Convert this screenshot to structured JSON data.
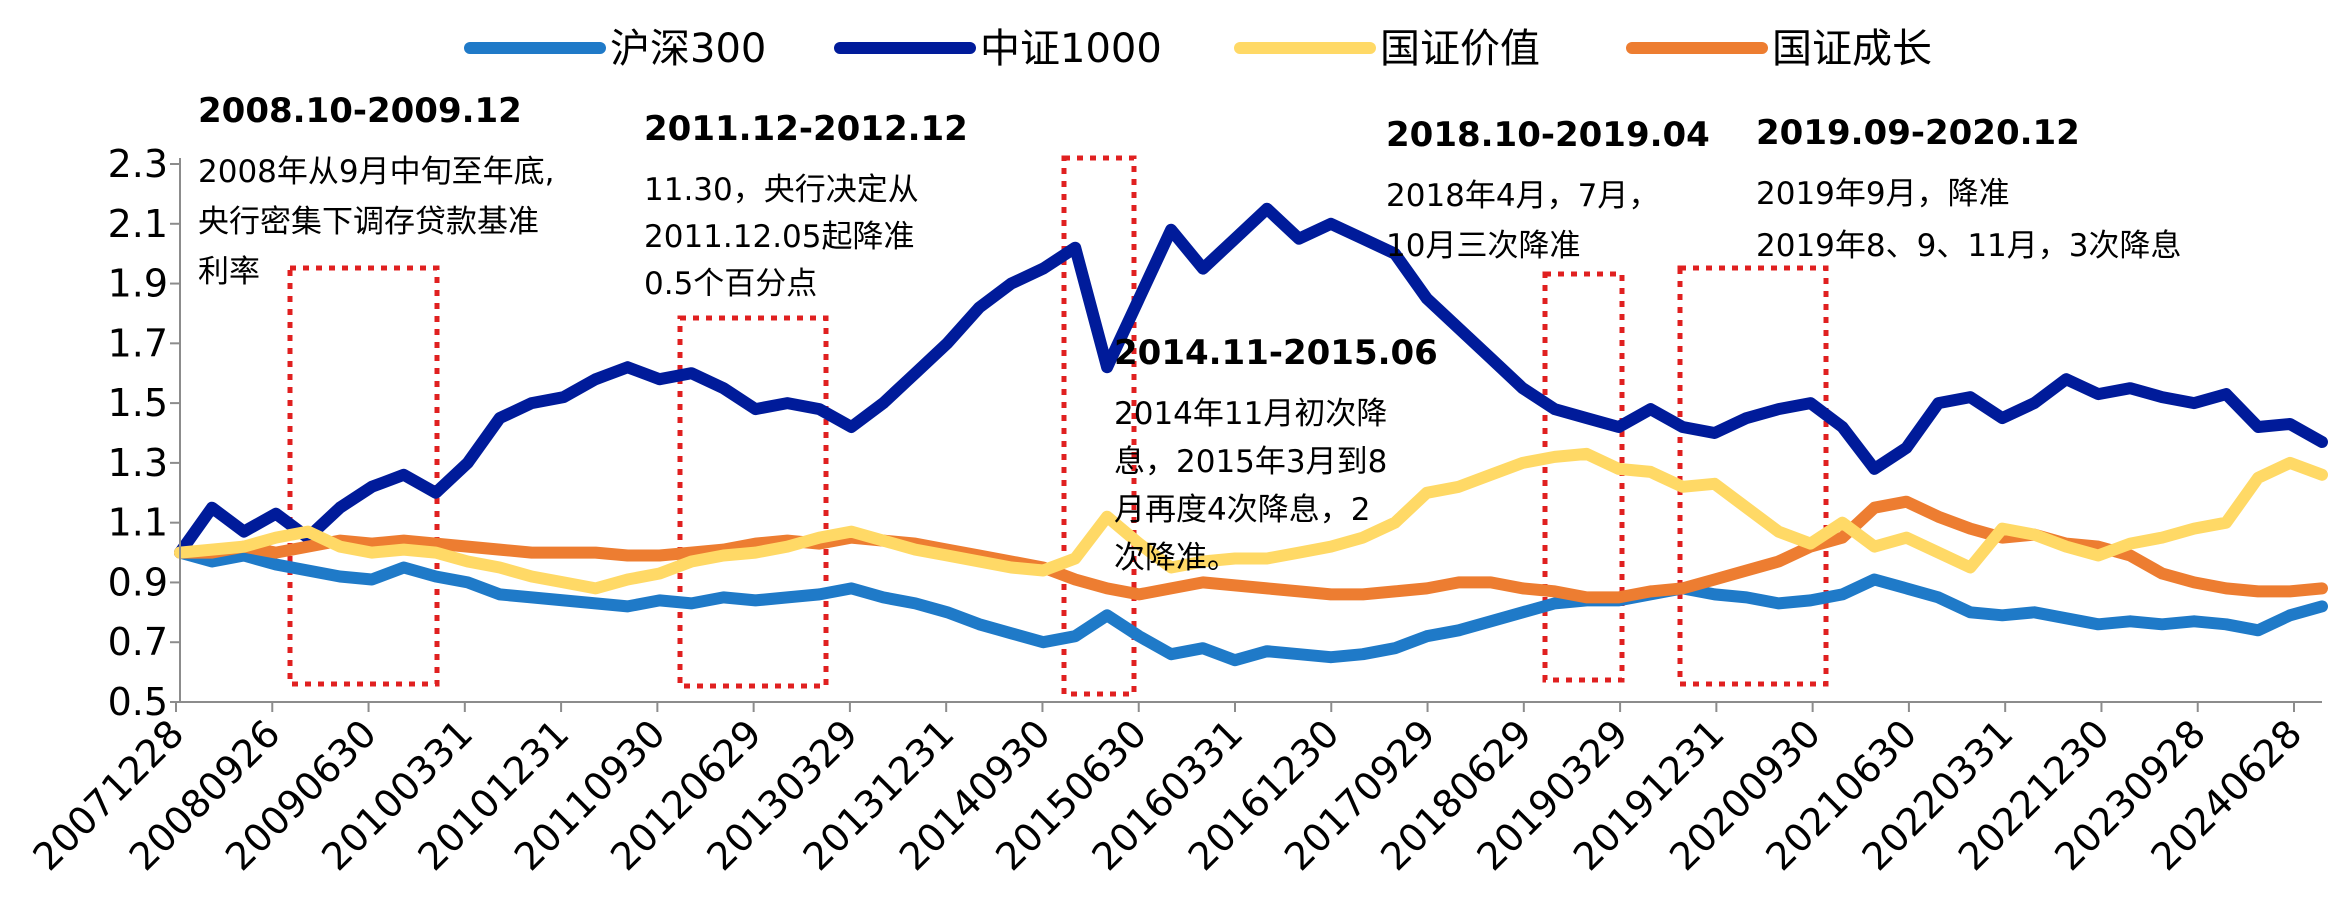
{
  "chart_data": {
    "type": "line",
    "title": "",
    "xlabel": "",
    "ylabel": "",
    "ylim": [
      0.5,
      2.3
    ],
    "yticks": [
      "0.5",
      "0.7",
      "0.9",
      "1.1",
      "1.3",
      "1.5",
      "1.7",
      "1.9",
      "2.1",
      "2.3"
    ],
    "xticks": [
      "20071228",
      "20080926",
      "20090630",
      "20100331",
      "20101231",
      "20110930",
      "20120629",
      "20130329",
      "20131231",
      "20140930",
      "20150630",
      "20160331",
      "20161230",
      "20170929",
      "20180629",
      "20190329",
      "20191231",
      "20200930",
      "20210630",
      "20220331",
      "20221230",
      "20230928",
      "20240628"
    ],
    "grid": false,
    "legend_position": "top",
    "x": [
      "2007-12",
      "2008-03",
      "2008-06",
      "2008-09",
      "2008-12",
      "2009-03",
      "2009-06",
      "2009-09",
      "2009-12",
      "2010-03",
      "2010-06",
      "2010-09",
      "2010-12",
      "2011-03",
      "2011-06",
      "2011-09",
      "2011-12",
      "2012-03",
      "2012-06",
      "2012-09",
      "2012-12",
      "2013-03",
      "2013-06",
      "2013-09",
      "2013-12",
      "2014-03",
      "2014-06",
      "2014-09",
      "2014-12",
      "2015-03",
      "2015-06",
      "2015-09",
      "2015-12",
      "2016-03",
      "2016-06",
      "2016-09",
      "2016-12",
      "2017-03",
      "2017-06",
      "2017-09",
      "2017-12",
      "2018-03",
      "2018-06",
      "2018-09",
      "2018-12",
      "2019-03",
      "2019-06",
      "2019-09",
      "2019-12",
      "2020-03",
      "2020-06",
      "2020-09",
      "2020-12",
      "2021-03",
      "2021-06",
      "2021-09",
      "2021-12",
      "2022-03",
      "2022-06",
      "2022-09",
      "2022-12",
      "2023-03",
      "2023-06",
      "2023-09",
      "2023-12",
      "2024-03",
      "2024-06",
      "2024-09"
    ],
    "series": [
      {
        "name": "沪深300",
        "color": "#1F7AC8",
        "values": [
          1.0,
          0.97,
          0.99,
          0.96,
          0.94,
          0.92,
          0.91,
          0.95,
          0.92,
          0.9,
          0.86,
          0.85,
          0.84,
          0.83,
          0.82,
          0.84,
          0.83,
          0.85,
          0.84,
          0.85,
          0.86,
          0.88,
          0.85,
          0.83,
          0.8,
          0.76,
          0.73,
          0.7,
          0.72,
          0.79,
          0.72,
          0.66,
          0.68,
          0.64,
          0.67,
          0.66,
          0.65,
          0.66,
          0.68,
          0.72,
          0.74,
          0.77,
          0.8,
          0.83,
          0.84,
          0.84,
          0.86,
          0.88,
          0.86,
          0.85,
          0.83,
          0.84,
          0.86,
          0.91,
          0.88,
          0.85,
          0.8,
          0.79,
          0.8,
          0.78,
          0.76,
          0.77,
          0.76,
          0.77,
          0.76,
          0.74,
          0.79,
          0.82
        ]
      },
      {
        "name": "中证1000",
        "color": "#001B9A",
        "values": [
          1.0,
          1.15,
          1.07,
          1.13,
          1.05,
          1.15,
          1.22,
          1.26,
          1.2,
          1.3,
          1.45,
          1.5,
          1.52,
          1.58,
          1.62,
          1.58,
          1.6,
          1.55,
          1.48,
          1.5,
          1.48,
          1.42,
          1.5,
          1.6,
          1.7,
          1.82,
          1.9,
          1.95,
          2.02,
          1.62,
          1.85,
          2.08,
          1.95,
          2.05,
          2.15,
          2.05,
          2.1,
          2.05,
          2.0,
          1.85,
          1.75,
          1.65,
          1.55,
          1.48,
          1.45,
          1.42,
          1.48,
          1.42,
          1.4,
          1.45,
          1.48,
          1.5,
          1.42,
          1.28,
          1.35,
          1.5,
          1.52,
          1.45,
          1.5,
          1.58,
          1.53,
          1.55,
          1.52,
          1.5,
          1.53,
          1.42,
          1.43,
          1.37
        ]
      },
      {
        "name": "国证价值",
        "color": "#FFD966",
        "values": [
          1.0,
          1.01,
          1.02,
          1.05,
          1.07,
          1.02,
          1.0,
          1.01,
          1.0,
          0.97,
          0.95,
          0.92,
          0.9,
          0.88,
          0.91,
          0.93,
          0.97,
          0.99,
          1.0,
          1.02,
          1.05,
          1.07,
          1.04,
          1.01,
          0.99,
          0.97,
          0.95,
          0.94,
          0.98,
          1.12,
          1.03,
          0.95,
          0.97,
          0.98,
          0.98,
          1.0,
          1.02,
          1.05,
          1.1,
          1.2,
          1.22,
          1.26,
          1.3,
          1.32,
          1.33,
          1.28,
          1.27,
          1.22,
          1.23,
          1.15,
          1.07,
          1.03,
          1.1,
          1.02,
          1.05,
          1.0,
          0.95,
          1.08,
          1.06,
          1.02,
          0.99,
          1.03,
          1.05,
          1.08,
          1.1,
          1.25,
          1.3,
          1.26
        ]
      },
      {
        "name": "国证成长",
        "color": "#ED7D31",
        "values": [
          1.0,
          1.0,
          1.02,
          1.0,
          1.02,
          1.04,
          1.03,
          1.04,
          1.03,
          1.02,
          1.01,
          1.0,
          1.0,
          1.0,
          0.99,
          0.99,
          1.0,
          1.01,
          1.03,
          1.04,
          1.03,
          1.05,
          1.04,
          1.03,
          1.01,
          0.99,
          0.97,
          0.95,
          0.91,
          0.88,
          0.86,
          0.88,
          0.9,
          0.89,
          0.88,
          0.87,
          0.86,
          0.86,
          0.87,
          0.88,
          0.9,
          0.9,
          0.88,
          0.87,
          0.85,
          0.85,
          0.87,
          0.88,
          0.91,
          0.94,
          0.97,
          1.02,
          1.05,
          1.15,
          1.17,
          1.12,
          1.08,
          1.05,
          1.06,
          1.03,
          1.02,
          0.99,
          0.93,
          0.9,
          0.88,
          0.87,
          0.87,
          0.88
        ]
      }
    ],
    "annotations": [
      {
        "title": "2008.10-2009.12",
        "lines": [
          "2008年从9月中旬至年底,",
          "央行密集下调存贷款基准",
          "利率"
        ]
      },
      {
        "title": "2011.12-2012.12",
        "lines": [
          "11.30，央行决定从",
          "2011.12.05起降准",
          "0.5个百分点"
        ]
      },
      {
        "title": "2014.11-2015.06",
        "lines": [
          "2014年11月初次降",
          "息，2015年3月到8",
          "月再度4次降息，2",
          "次降准。"
        ]
      },
      {
        "title": "2018.10-2019.04",
        "lines": [
          "2018年4月，7月，",
          "10月三次降准"
        ]
      },
      {
        "title": "2019.09-2020.12",
        "lines": [
          "2019年9月，降准",
          "2019年8、9、11月，3次降息"
        ]
      }
    ]
  }
}
